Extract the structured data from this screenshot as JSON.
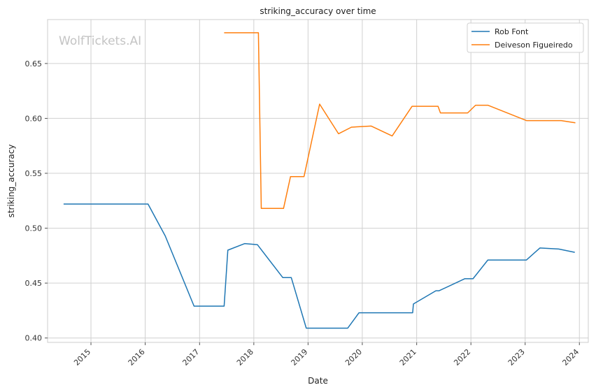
{
  "chart_data": {
    "type": "line",
    "title": "striking_accuracy over time",
    "xlabel": "Date",
    "ylabel": "striking_accuracy",
    "watermark": "WolfTickets.AI",
    "x_ticks": [
      "2015",
      "2016",
      "2017",
      "2018",
      "2019",
      "2020",
      "2021",
      "2022",
      "2023",
      "2024"
    ],
    "y_ticks": [
      "0.40",
      "0.45",
      "0.50",
      "0.55",
      "0.60",
      "0.65"
    ],
    "xlim": [
      "2014-03-15",
      "2024-03-01"
    ],
    "ylim": [
      0.396,
      0.69
    ],
    "grid": true,
    "legend_position": "top-right",
    "series": [
      {
        "name": "Rob Font",
        "color": "#1f77b4",
        "points": [
          [
            "2014-07-01",
            0.522
          ],
          [
            "2016-01-20",
            0.522
          ],
          [
            "2016-05-15",
            0.493
          ],
          [
            "2016-11-25",
            0.429
          ],
          [
            "2017-06-15",
            0.429
          ],
          [
            "2017-07-10",
            0.48
          ],
          [
            "2017-11-01",
            0.486
          ],
          [
            "2018-01-25",
            0.485
          ],
          [
            "2018-07-15",
            0.455
          ],
          [
            "2018-09-10",
            0.455
          ],
          [
            "2018-12-20",
            0.409
          ],
          [
            "2019-09-25",
            0.409
          ],
          [
            "2019-12-10",
            0.423
          ],
          [
            "2020-12-05",
            0.423
          ],
          [
            "2020-12-10",
            0.431
          ],
          [
            "2021-05-10",
            0.443
          ],
          [
            "2021-06-01",
            0.443
          ],
          [
            "2021-11-20",
            0.454
          ],
          [
            "2022-01-15",
            0.454
          ],
          [
            "2022-04-25",
            0.471
          ],
          [
            "2023-01-10",
            0.471
          ],
          [
            "2023-04-10",
            0.482
          ],
          [
            "2023-08-15",
            0.481
          ],
          [
            "2023-12-01",
            0.478
          ]
        ]
      },
      {
        "name": "Deiveson Figueiredo",
        "color": "#ff7f0e",
        "points": [
          [
            "2017-06-15",
            0.678
          ],
          [
            "2018-02-01",
            0.678
          ],
          [
            "2018-02-20",
            0.518
          ],
          [
            "2018-07-20",
            0.518
          ],
          [
            "2018-09-05",
            0.547
          ],
          [
            "2018-12-05",
            0.547
          ],
          [
            "2019-03-20",
            0.613
          ],
          [
            "2019-07-25",
            0.586
          ],
          [
            "2019-10-20",
            0.592
          ],
          [
            "2020-03-01",
            0.593
          ],
          [
            "2020-07-20",
            0.584
          ],
          [
            "2020-12-01",
            0.611
          ],
          [
            "2021-05-25",
            0.611
          ],
          [
            "2021-06-10",
            0.605
          ],
          [
            "2021-12-10",
            0.605
          ],
          [
            "2022-02-01",
            0.612
          ],
          [
            "2022-04-25",
            0.612
          ],
          [
            "2023-01-10",
            0.598
          ],
          [
            "2023-09-01",
            0.598
          ],
          [
            "2023-12-05",
            0.596
          ]
        ]
      }
    ]
  }
}
